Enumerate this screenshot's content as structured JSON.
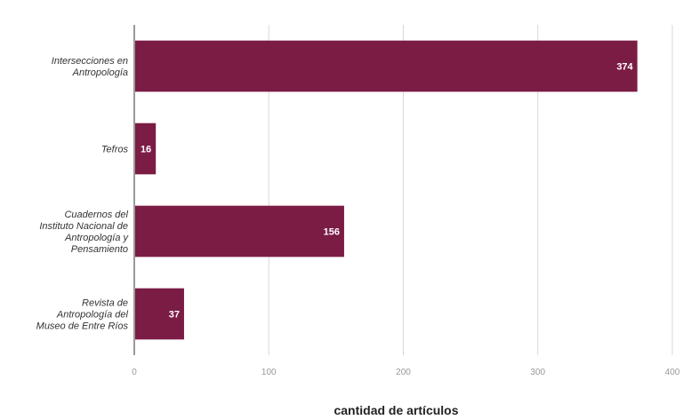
{
  "chart_data": {
    "type": "bar",
    "orientation": "horizontal",
    "title": "",
    "xlabel": "cantidad de artículos",
    "ylabel": "",
    "categories": [
      [
        "Intersecciones en",
        "Antropología"
      ],
      [
        "Tefros"
      ],
      [
        "Cuadernos del",
        "Instituto Nacional de",
        "Antropología y",
        "Pensamiento"
      ],
      [
        "Revista de",
        "Antropología del",
        "Museo de Entre Ríos"
      ]
    ],
    "values": [
      374,
      16,
      156,
      37
    ],
    "xlim": [
      0,
      400
    ],
    "xticks": [
      0,
      100,
      200,
      300,
      400
    ],
    "grid": true,
    "bar_color": "#7b1c45"
  }
}
